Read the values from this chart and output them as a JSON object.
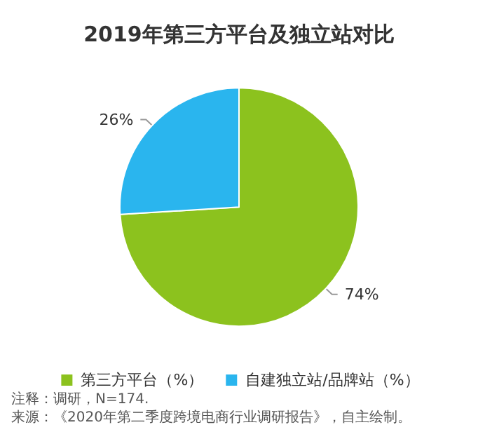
{
  "chart_data": {
    "type": "pie",
    "title": "2019年第三方平台及独立站对比",
    "categories": [
      "第三方平台（%）",
      "自建独立站/品牌站（%）"
    ],
    "values": [
      74,
      26
    ],
    "colors": [
      "#8cc21e",
      "#2ab5ee"
    ],
    "value_labels": [
      "74%",
      "26%"
    ],
    "legend": "bottom",
    "annotations": [
      "注释：调研，N=174.",
      "来源：《2020年第二季度跨境电商行业调研报告》，自主绘制。"
    ]
  }
}
